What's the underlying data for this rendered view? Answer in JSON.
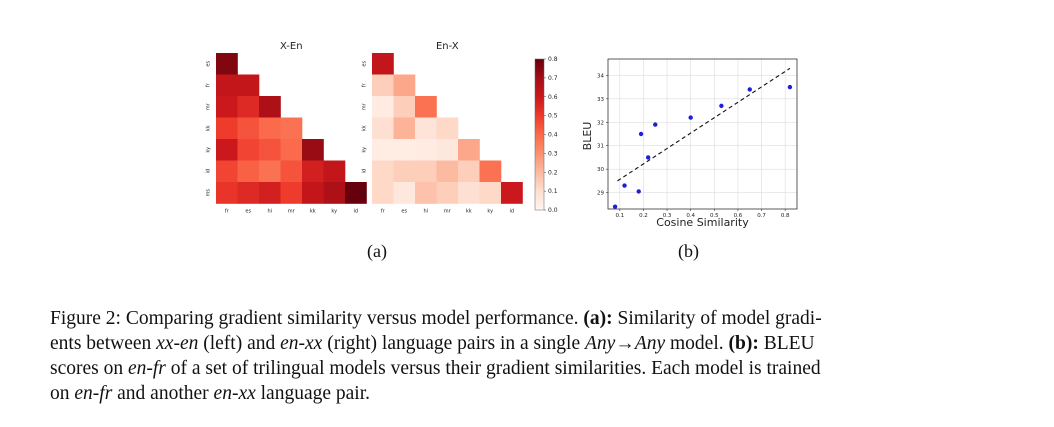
{
  "chart_data": [
    {
      "type": "heatmap",
      "title": "X-En",
      "rows": [
        "es",
        "fr",
        "mr",
        "kk",
        "ky",
        "id",
        "ms"
      ],
      "columns": [
        "fr",
        "es",
        "hi",
        "mr",
        "kk",
        "ky",
        "id"
      ],
      "values": [
        [
          0.76
        ],
        [
          0.62,
          0.62
        ],
        [
          0.6,
          0.55,
          0.68
        ],
        [
          0.5,
          0.45,
          0.4,
          0.38
        ],
        [
          0.6,
          0.48,
          0.45,
          0.4,
          0.72
        ],
        [
          0.48,
          0.42,
          0.38,
          0.45,
          0.58,
          0.62
        ],
        [
          0.52,
          0.55,
          0.58,
          0.5,
          0.62,
          0.68,
          0.82
        ]
      ]
    },
    {
      "type": "heatmap",
      "title": "En-X",
      "rows": [
        "es",
        "fr",
        "mr",
        "kk",
        "ky",
        "id",
        "ms"
      ],
      "columns": [
        "fr",
        "es",
        "hi",
        "mr",
        "kk",
        "ky",
        "id"
      ],
      "values": [
        [
          0.62
        ],
        [
          0.15,
          0.25
        ],
        [
          0.05,
          0.15,
          0.38
        ],
        [
          0.1,
          0.22,
          0.08,
          0.12
        ],
        [
          0.04,
          0.04,
          0.05,
          0.06,
          0.25
        ],
        [
          0.12,
          0.15,
          0.15,
          0.2,
          0.15,
          0.38
        ],
        [
          0.12,
          0.06,
          0.18,
          0.15,
          0.1,
          0.12,
          0.6
        ]
      ],
      "colorbar": {
        "ticks": [
          "0.0",
          "0.1",
          "0.2",
          "0.3",
          "0.4",
          "0.5",
          "0.6",
          "0.7",
          "0.8"
        ],
        "min": 0,
        "max": 0.8
      }
    },
    {
      "type": "scatter",
      "xlabel": "Cosine Similarity",
      "ylabel": "BLEU",
      "xlim": [
        0.05,
        0.85
      ],
      "ylim": [
        28.3,
        34.7
      ],
      "xticks": [
        "0.1",
        "0.2",
        "0.3",
        "0.4",
        "0.5",
        "0.6",
        "0.7",
        "0.8"
      ],
      "yticks": [
        "29",
        "30",
        "31",
        "32",
        "33",
        "34"
      ],
      "grid": true,
      "points": [
        {
          "x": 0.08,
          "y": 28.4
        },
        {
          "x": 0.12,
          "y": 29.3
        },
        {
          "x": 0.18,
          "y": 29.05
        },
        {
          "x": 0.19,
          "y": 31.5
        },
        {
          "x": 0.22,
          "y": 30.5
        },
        {
          "x": 0.25,
          "y": 31.9
        },
        {
          "x": 0.4,
          "y": 32.2
        },
        {
          "x": 0.53,
          "y": 32.7
        },
        {
          "x": 0.65,
          "y": 33.4
        },
        {
          "x": 0.82,
          "y": 33.5
        }
      ],
      "trend": {
        "x0": 0.09,
        "y0": 29.5,
        "x1": 0.82,
        "y1": 34.3
      }
    }
  ],
  "subplot_labels": [
    "(a)",
    "(b)"
  ],
  "caption": {
    "lines": [
      [
        {
          "t": "Figure 2: Comparing gradient similarity versus model performance. ",
          "s": "n"
        },
        {
          "t": "(a):",
          "s": "b"
        },
        {
          "t": " Similarity of model gradi-",
          "s": "n"
        }
      ],
      [
        {
          "t": "ents between ",
          "s": "n"
        },
        {
          "t": "xx-en",
          "s": "i"
        },
        {
          "t": " (left) and ",
          "s": "n"
        },
        {
          "t": "en-xx",
          "s": "i"
        },
        {
          "t": " (right) language pairs in a single ",
          "s": "n"
        },
        {
          "t": "Any",
          "s": "i"
        },
        {
          "t": "→",
          "s": "n"
        },
        {
          "t": "Any",
          "s": "i"
        },
        {
          "t": " model. ",
          "s": "n"
        },
        {
          "t": "(b):",
          "s": "b"
        },
        {
          "t": " BLEU",
          "s": "n"
        }
      ],
      [
        {
          "t": "scores on ",
          "s": "n"
        },
        {
          "t": "en-fr",
          "s": "i"
        },
        {
          "t": " of a set of trilingual models versus their gradient similarities. Each model is trained",
          "s": "n"
        }
      ],
      [
        {
          "t": "on ",
          "s": "n"
        },
        {
          "t": "en-fr",
          "s": "i"
        },
        {
          "t": " and another ",
          "s": "n"
        },
        {
          "t": "en-xx",
          "s": "i"
        },
        {
          "t": " language pair.",
          "s": "n"
        }
      ]
    ]
  }
}
